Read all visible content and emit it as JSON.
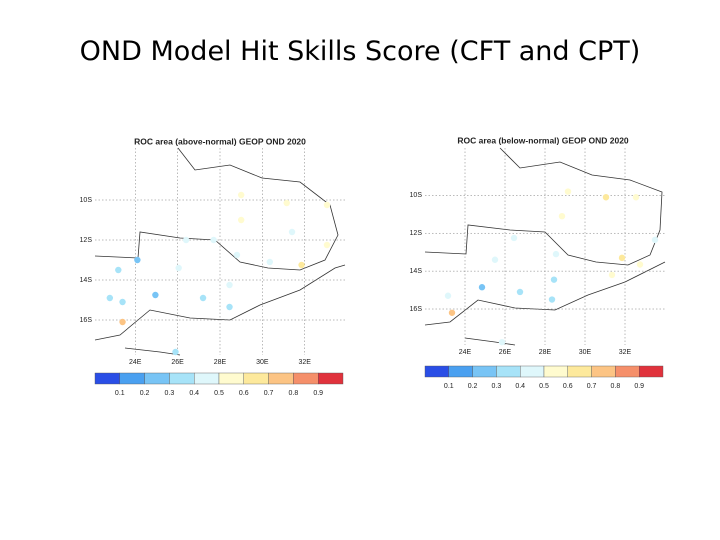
{
  "title": "OND Model Hit Skills Score (CFT and CPT)",
  "colorbar": {
    "colors": [
      "#2a4ee6",
      "#4aa0f0",
      "#78c4f5",
      "#a7e3f8",
      "#dff7fb",
      "#fffbcf",
      "#fde99c",
      "#fcc484",
      "#f58f6a",
      "#e0323c"
    ],
    "bounds": [
      0.1,
      0.2,
      0.3,
      0.4,
      0.5,
      0.6,
      0.7,
      0.8,
      0.9
    ]
  },
  "maps": [
    {
      "title": "ROC area (above-normal) GEOP OND 2020",
      "lonlim": [
        22.1,
        33.9
      ],
      "latlim": [
        -17.75,
        -7.4
      ],
      "lon_ticks": [
        {
          "value": 24,
          "label": "24E"
        },
        {
          "value": 26,
          "label": "26E"
        },
        {
          "value": 28,
          "label": "28E"
        },
        {
          "value": 30,
          "label": "30E"
        },
        {
          "value": 32,
          "label": "32E"
        }
      ],
      "lat_ticks": [
        {
          "value": -10,
          "label": "10S"
        },
        {
          "value": -12,
          "label": "12S"
        },
        {
          "value": -14,
          "label": "14S"
        },
        {
          "value": -16,
          "label": "16S"
        }
      ],
      "points": [
        {
          "lon": 29.0,
          "lat": -9.75,
          "value": 0.55
        },
        {
          "lon": 31.15,
          "lat": -10.15,
          "value": 0.5
        },
        {
          "lon": 29.0,
          "lat": -11.0,
          "value": 0.55
        },
        {
          "lon": 33.05,
          "lat": -10.25,
          "value": 0.5
        },
        {
          "lon": 31.4,
          "lat": -11.6,
          "value": 0.45
        },
        {
          "lon": 26.4,
          "lat": -12.0,
          "value": 0.45
        },
        {
          "lon": 27.7,
          "lat": -12.0,
          "value": 0.4
        },
        {
          "lon": 28.8,
          "lat": -12.75,
          "value": 0.45
        },
        {
          "lon": 30.35,
          "lat": -13.1,
          "value": 0.45
        },
        {
          "lon": 31.85,
          "lat": -13.25,
          "value": 0.65
        },
        {
          "lon": 33.05,
          "lat": -12.25,
          "value": 0.55
        },
        {
          "lon": 23.2,
          "lat": -13.5,
          "value": 0.35
        },
        {
          "lon": 24.1,
          "lat": -13.0,
          "value": 0.25
        },
        {
          "lon": 26.05,
          "lat": -13.4,
          "value": 0.4
        },
        {
          "lon": 28.45,
          "lat": -14.25,
          "value": 0.4
        },
        {
          "lon": 22.8,
          "lat": -14.9,
          "value": 0.3
        },
        {
          "lon": 23.4,
          "lat": -15.1,
          "value": 0.3
        },
        {
          "lon": 24.95,
          "lat": -14.75,
          "value": 0.25
        },
        {
          "lon": 27.2,
          "lat": -14.9,
          "value": 0.3
        },
        {
          "lon": 28.45,
          "lat": -15.35,
          "value": 0.35
        },
        {
          "lon": 23.4,
          "lat": -16.1,
          "value": 0.7
        },
        {
          "lon": 25.9,
          "lat": -17.6,
          "value": 0.35
        }
      ]
    },
    {
      "title": "ROC area (below-normal) GEOP OND 2020",
      "lonlim": [
        22.0,
        34.0
      ],
      "latlim": [
        -17.9,
        -7.5
      ],
      "lon_ticks": [
        {
          "value": 24,
          "label": "24E"
        },
        {
          "value": 26,
          "label": "26E"
        },
        {
          "value": 28,
          "label": "28E"
        },
        {
          "value": 30,
          "label": "30E"
        },
        {
          "value": 32,
          "label": "32E"
        }
      ],
      "lat_ticks": [
        {
          "value": -10,
          "label": "10S"
        },
        {
          "value": -12,
          "label": "12S"
        },
        {
          "value": -14,
          "label": "14S"
        },
        {
          "value": -16,
          "label": "16S"
        }
      ],
      "points": [
        {
          "lon": 29.15,
          "lat": -9.8,
          "value": 0.55
        },
        {
          "lon": 31.05,
          "lat": -10.1,
          "value": 0.6
        },
        {
          "lon": 32.55,
          "lat": -10.1,
          "value": 0.55
        },
        {
          "lon": 28.85,
          "lat": -11.1,
          "value": 0.5
        },
        {
          "lon": 33.5,
          "lat": -12.35,
          "value": 0.45
        },
        {
          "lon": 26.45,
          "lat": -12.25,
          "value": 0.4
        },
        {
          "lon": 28.55,
          "lat": -13.1,
          "value": 0.4
        },
        {
          "lon": 25.5,
          "lat": -13.4,
          "value": 0.4
        },
        {
          "lon": 31.85,
          "lat": -13.3,
          "value": 0.65
        },
        {
          "lon": 31.35,
          "lat": -14.2,
          "value": 0.55
        },
        {
          "lon": 32.75,
          "lat": -13.65,
          "value": 0.5
        },
        {
          "lon": 28.45,
          "lat": -14.45,
          "value": 0.35
        },
        {
          "lon": 24.85,
          "lat": -14.85,
          "value": 0.25
        },
        {
          "lon": 26.75,
          "lat": -15.1,
          "value": 0.3
        },
        {
          "lon": 28.35,
          "lat": -15.5,
          "value": 0.35
        },
        {
          "lon": 23.15,
          "lat": -15.3,
          "value": 0.4
        },
        {
          "lon": 23.35,
          "lat": -16.2,
          "value": 0.75
        },
        {
          "lon": 25.85,
          "lat": -17.75,
          "value": 0.4
        }
      ]
    }
  ]
}
